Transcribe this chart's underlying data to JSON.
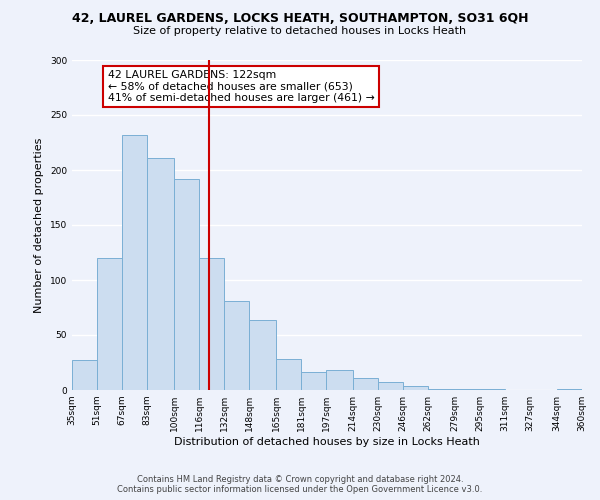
{
  "title_line1": "42, LAUREL GARDENS, LOCKS HEATH, SOUTHAMPTON, SO31 6QH",
  "title_line2": "Size of property relative to detached houses in Locks Heath",
  "xlabel": "Distribution of detached houses by size in Locks Heath",
  "ylabel": "Number of detached properties",
  "bar_color": "#ccddf0",
  "bar_edge_color": "#7aafd4",
  "vline_x": 122,
  "vline_color": "#cc0000",
  "annotation_title": "42 LAUREL GARDENS: 122sqm",
  "annotation_line2": "← 58% of detached houses are smaller (653)",
  "annotation_line3": "41% of semi-detached houses are larger (461) →",
  "annotation_box_color": "#ffffff",
  "annotation_box_edge": "#cc0000",
  "bin_edges": [
    35,
    51,
    67,
    83,
    100,
    116,
    132,
    148,
    165,
    181,
    197,
    214,
    230,
    246,
    262,
    279,
    295,
    311,
    327,
    344,
    360
  ],
  "bin_labels": [
    "35sqm",
    "51sqm",
    "67sqm",
    "83sqm",
    "100sqm",
    "116sqm",
    "132sqm",
    "148sqm",
    "165sqm",
    "181sqm",
    "197sqm",
    "214sqm",
    "230sqm",
    "246sqm",
    "262sqm",
    "279sqm",
    "295sqm",
    "311sqm",
    "327sqm",
    "344sqm",
    "360sqm"
  ],
  "counts": [
    27,
    120,
    232,
    211,
    192,
    120,
    81,
    64,
    28,
    16,
    18,
    11,
    7,
    4,
    1,
    1,
    1,
    0,
    0,
    1
  ],
  "ylim": [
    0,
    300
  ],
  "yticks": [
    0,
    50,
    100,
    150,
    200,
    250,
    300
  ],
  "footer_line1": "Contains HM Land Registry data © Crown copyright and database right 2024.",
  "footer_line2": "Contains public sector information licensed under the Open Government Licence v3.0.",
  "bg_color": "#eef2fb"
}
